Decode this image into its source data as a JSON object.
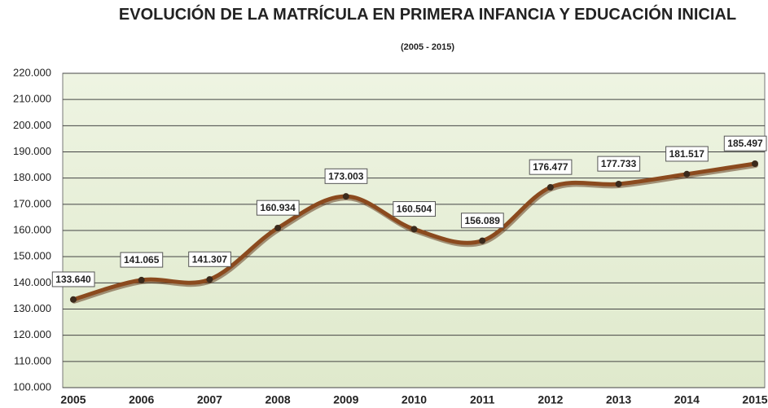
{
  "chart_data": {
    "type": "line",
    "title": "EVOLUCIÓN DE LA MATRÍCULA EN PRIMERA INFANCIA Y EDUCACIÓN INICIAL",
    "subtitle": "(2005 - 2015)",
    "categories": [
      "2005",
      "2006",
      "2007",
      "2008",
      "2009",
      "2010",
      "2011",
      "2012",
      "2013",
      "2014",
      "2015"
    ],
    "series": [
      {
        "color": "#8b4a1e",
        "marker_color": "#3b2a1c",
        "values": [
          133640,
          141065,
          141307,
          160934,
          173003,
          160504,
          156089,
          176477,
          177733,
          181517,
          185497
        ],
        "value_labels": [
          "133.640",
          "141.065",
          "141.307",
          "160.934",
          "173.003",
          "160.504",
          "156.089",
          "176.477",
          "177.733",
          "181.517",
          "185.497"
        ]
      }
    ],
    "ylim": [
      100000,
      220000
    ],
    "yticks": [
      {
        "value": 100000,
        "label": "100.000"
      },
      {
        "value": 110000,
        "label": "110.000"
      },
      {
        "value": 120000,
        "label": "120.000"
      },
      {
        "value": 130000,
        "label": "130.000"
      },
      {
        "value": 140000,
        "label": "140.000"
      },
      {
        "value": 150000,
        "label": "150.000"
      },
      {
        "value": 160000,
        "label": "160.000"
      },
      {
        "value": 170000,
        "label": "170.000"
      },
      {
        "value": 180000,
        "label": "180.000"
      },
      {
        "value": 190000,
        "label": "190.000"
      },
      {
        "value": 200000,
        "label": "200.000"
      },
      {
        "value": 210000,
        "label": "210.000"
      },
      {
        "value": 220000,
        "label": "220.000"
      }
    ],
    "grid": true
  }
}
